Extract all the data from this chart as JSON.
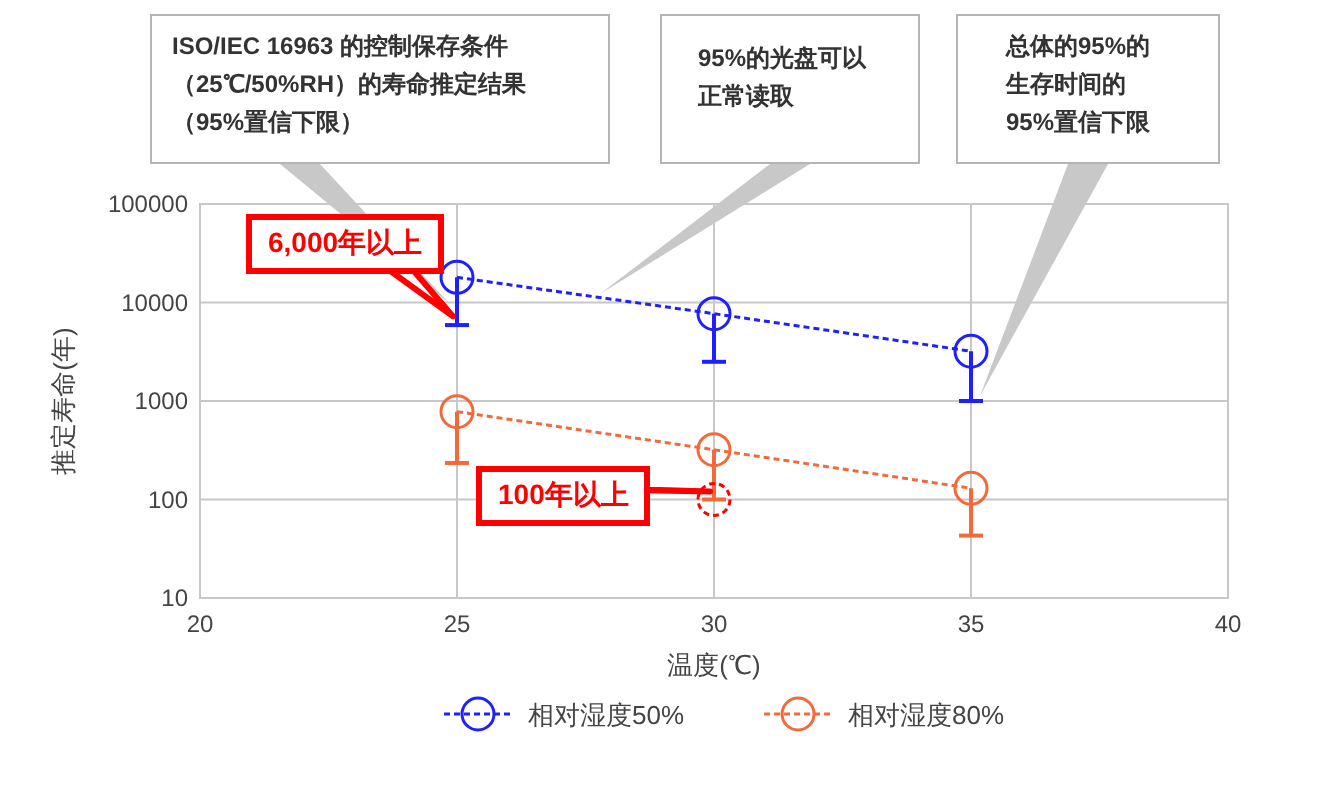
{
  "chart_data": {
    "type": "line",
    "xlabel": "温度(℃)",
    "ylabel": "推定寿命(年)",
    "log": "y",
    "xlim": [
      20,
      40
    ],
    "xticks": [
      20,
      25,
      30,
      35,
      40
    ],
    "ylim": [
      10,
      100000
    ],
    "yticks": [
      10,
      100,
      1000,
      10000,
      100000
    ],
    "grid": true,
    "legend": "bottom",
    "marker": "circle",
    "line_style": "dashed",
    "x": [
      25,
      30,
      35
    ],
    "series": [
      {
        "name": "相对湿度50%",
        "color": "#1f1fff",
        "values": [
          18000,
          7700,
          3200
        ],
        "errors": [
          [
            5900,
            18000
          ],
          [
            2500,
            7700
          ],
          [
            1000,
            3200
          ]
        ]
      },
      {
        "name": "相对湿度80%",
        "color": "#f26a3c",
        "values": [
          780,
          320,
          130
        ],
        "errors": [
          [
            235,
            780
          ],
          [
            100,
            320
          ],
          [
            43,
            130
          ]
        ]
      }
    ],
    "annotations": [
      "ISO/IEC 16963 的控制保存条件（25℃/50%RH）的寿命推定结果（95%置信下限）",
      "95%的光盘可以正常读取",
      "总体的95%的生存时间的95%置信下限",
      {
        "text": "6,000年以上",
        "x": 25,
        "y": 6000
      },
      {
        "text": "100年以上",
        "x": 30,
        "y": 100
      }
    ]
  }
}
